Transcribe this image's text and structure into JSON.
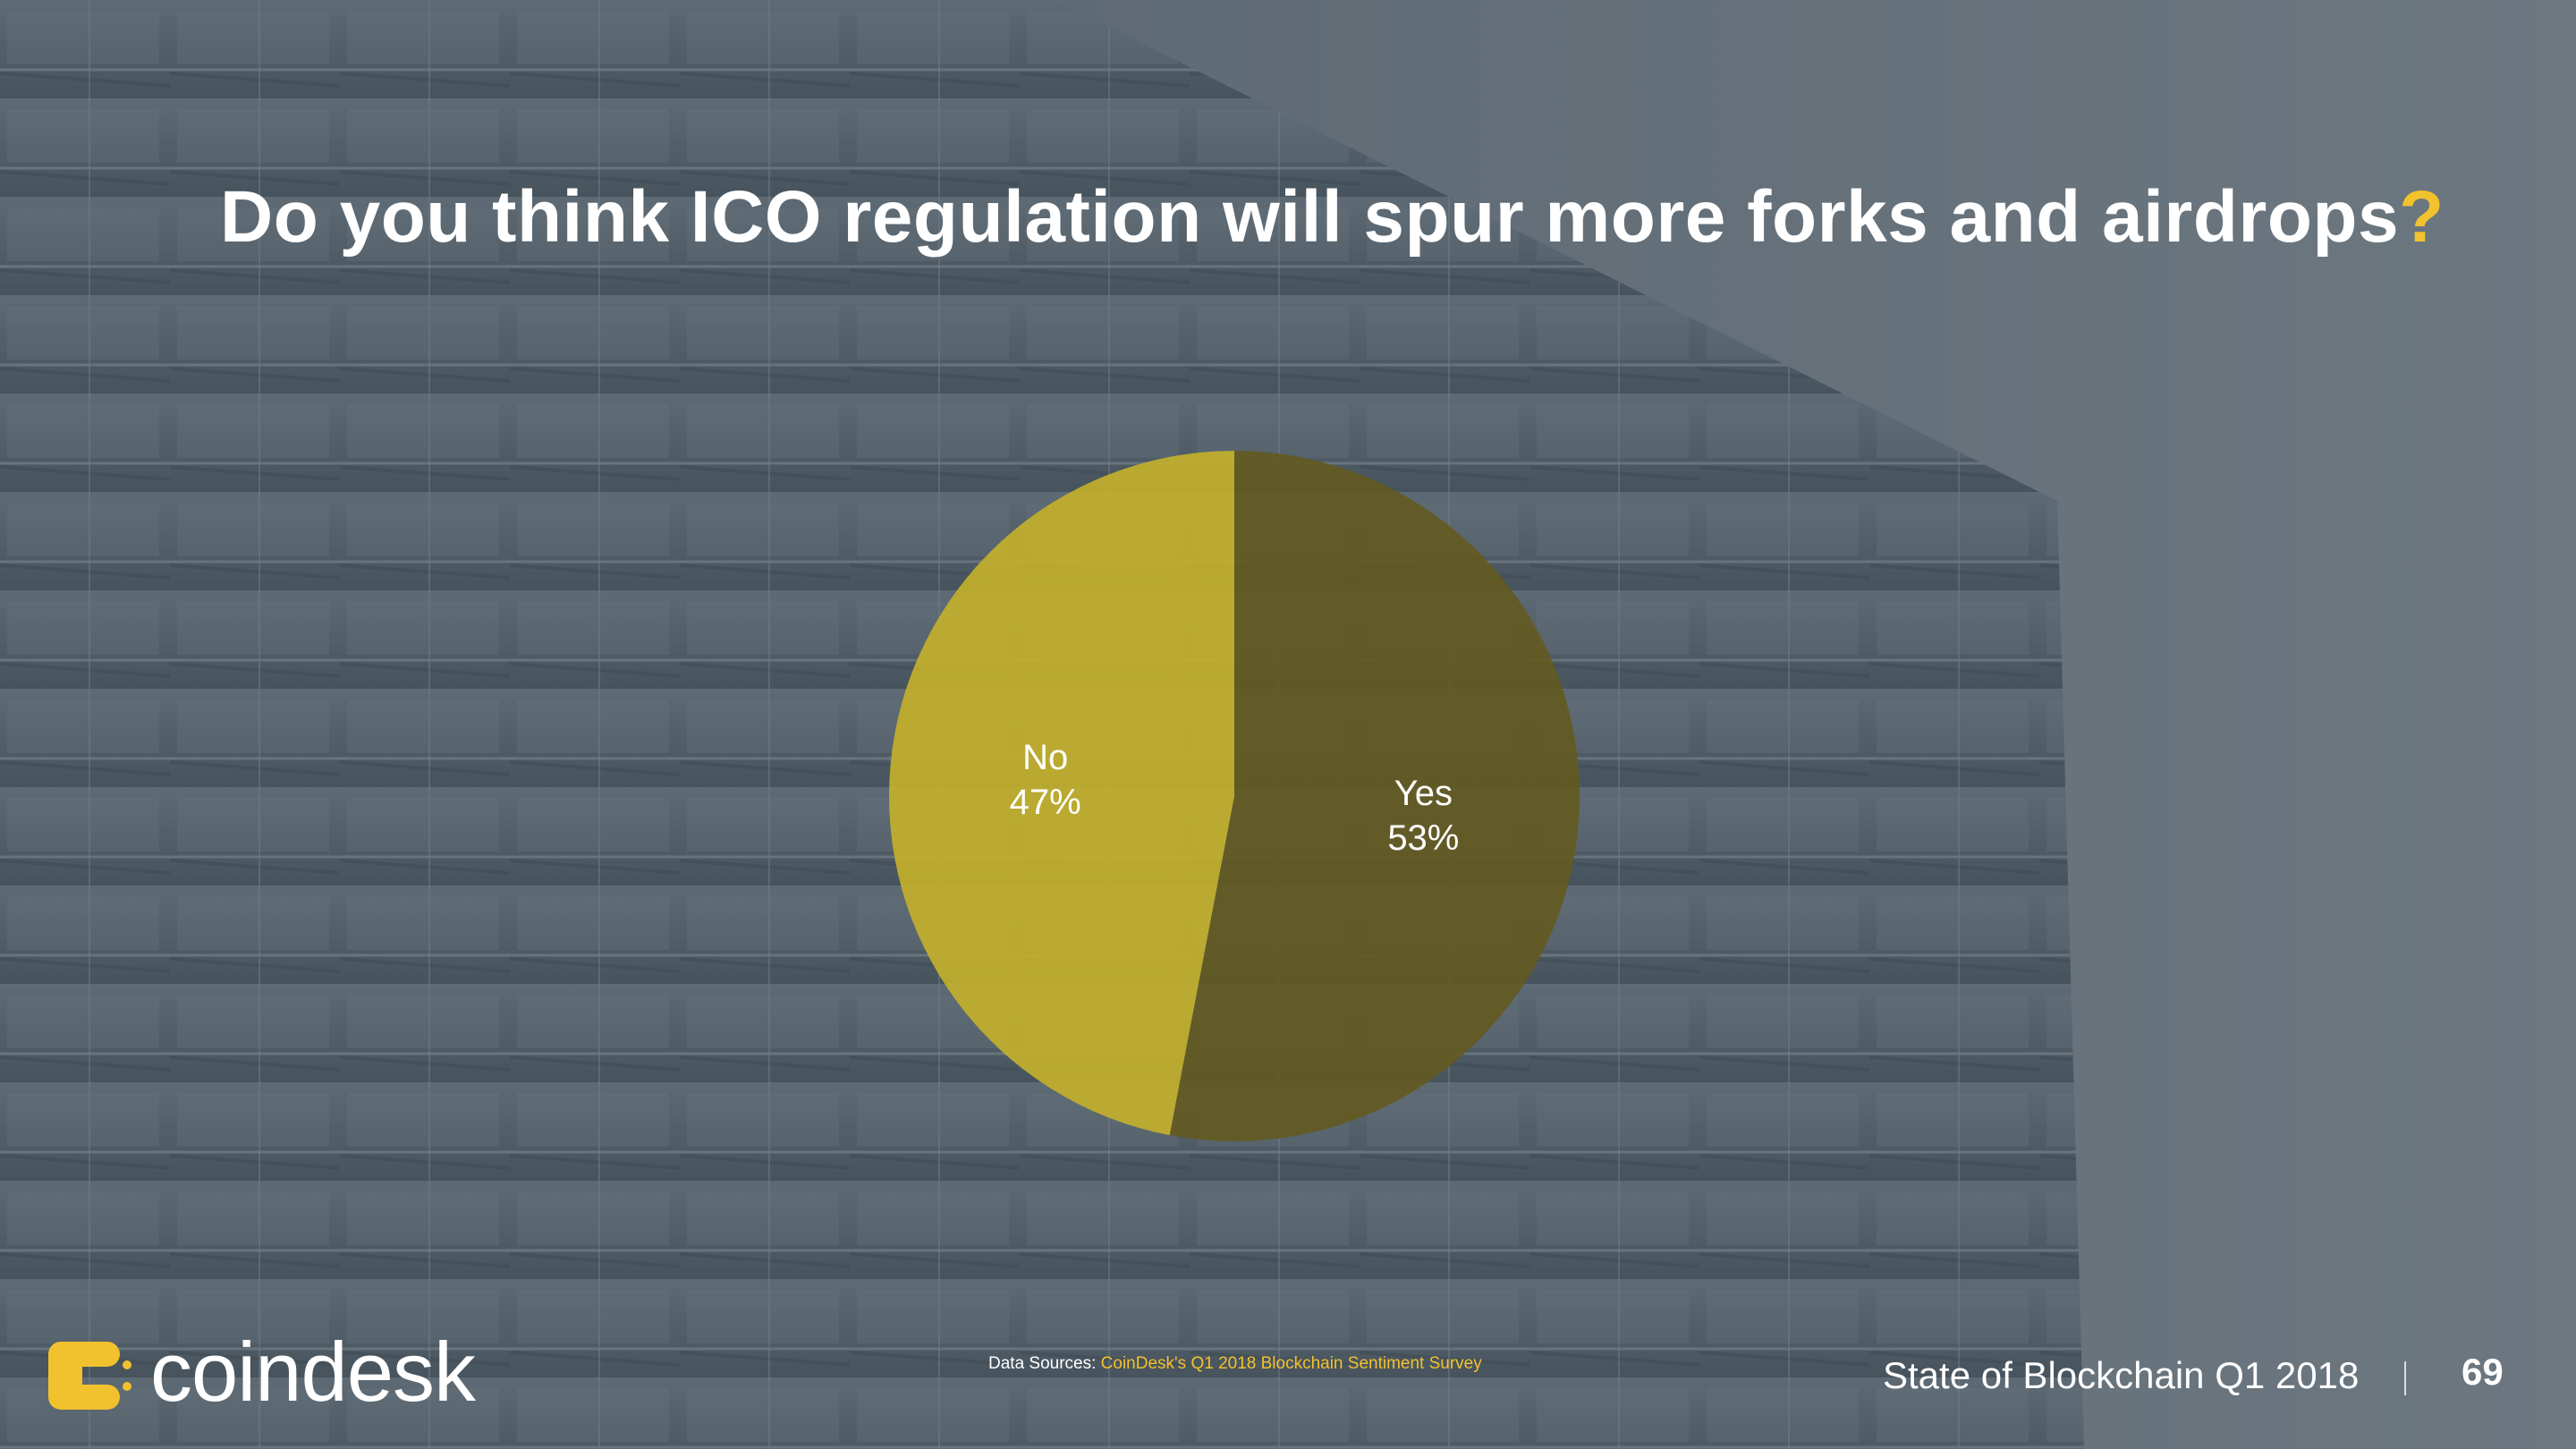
{
  "slide": {
    "title": "Do you think ICO regulation will spur more forks and airdrops",
    "title_mark": "?",
    "accent_color": "#f2c12e",
    "background": "building-facade-photo"
  },
  "chart_data": {
    "type": "pie",
    "title": "",
    "slices": [
      {
        "label": "Yes",
        "value": 53,
        "display": "53%",
        "color": "#635a22"
      },
      {
        "label": "No",
        "value": 47,
        "display": "47%",
        "color": "#c2b02c"
      }
    ],
    "start": "top-clockwise",
    "legend": "none"
  },
  "footer": {
    "logo_text": "coindesk",
    "logo_icon": "coindesk-logo-icon",
    "source_prefix": "Data Sources: ",
    "source_link": "CoinDesk's Q1 2018 Blockchain Sentiment Survey",
    "report_title": "State of Blockchain Q1 2018",
    "page_number": "69"
  }
}
